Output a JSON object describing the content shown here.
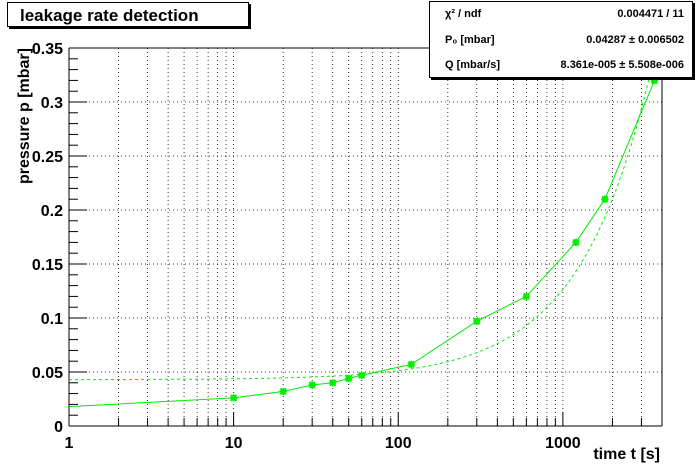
{
  "chart_data": {
    "type": "scatter",
    "title": "leakage rate detection",
    "xlabel": "time t [s]",
    "ylabel": "pressure p [mbar]",
    "xscale": "log",
    "xlim": [
      1,
      4000
    ],
    "ylim": [
      0,
      0.35
    ],
    "grid": true,
    "x_ticks": [
      "1",
      "10",
      "100",
      "1000"
    ],
    "y_ticks": [
      "0",
      "0.05",
      "0.1",
      "0.15",
      "0.2",
      "0.25",
      "0.3",
      "0.35"
    ],
    "series": [
      {
        "color": "#00ee00",
        "x": [
          10,
          20,
          30,
          40,
          50,
          60,
          120,
          300,
          600,
          1200,
          1800,
          3600
        ],
        "y": [
          0.026,
          0.032,
          0.038,
          0.04,
          0.044,
          0.047,
          0.057,
          0.097,
          0.12,
          0.17,
          0.21,
          0.32
        ]
      }
    ],
    "fit": {
      "p0": 0.04287,
      "q": 8.361e-05,
      "color": "#00ee00",
      "style": "dashed"
    },
    "stats": [
      {
        "key": "χ² / ndf",
        "value": "0.004471 / 11"
      },
      {
        "key": "P₀ [mbar]",
        "value": "0.04287 ± 0.006502"
      },
      {
        "key": "Q [mbar/s]",
        "value": "8.361e-005 ± 5.508e-006"
      }
    ]
  }
}
